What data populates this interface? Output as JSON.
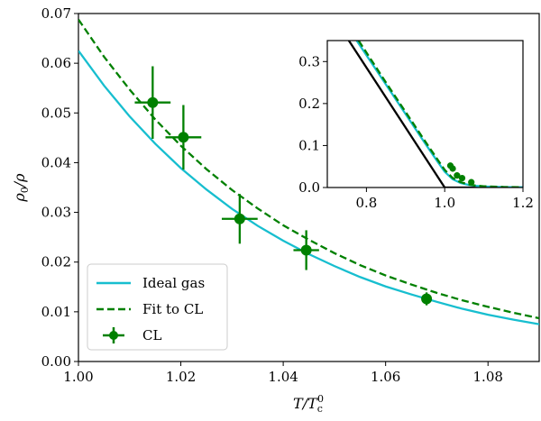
{
  "chart_data": [
    {
      "type": "line",
      "title": "",
      "xlabel": "T/T_c^0",
      "ylabel": "ρ_0/ρ",
      "xlim": [
        1.0,
        1.09
      ],
      "ylim": [
        0.0,
        0.07
      ],
      "xticks": [
        1.0,
        1.02,
        1.04,
        1.06,
        1.08
      ],
      "xtick_labels": [
        "1.00",
        "1.02",
        "1.04",
        "1.06",
        "1.08"
      ],
      "yticks": [
        0.0,
        0.01,
        0.02,
        0.03,
        0.04,
        0.05,
        0.06,
        0.07
      ],
      "ytick_labels": [
        "0.00",
        "0.01",
        "0.02",
        "0.03",
        "0.04",
        "0.05",
        "0.06",
        "0.07"
      ],
      "grid": false,
      "legend_position": "bottom-left",
      "series": [
        {
          "name": "Ideal gas",
          "style": "solid",
          "color": "#17becf",
          "x": [
            1.0,
            1.005,
            1.01,
            1.015,
            1.02,
            1.025,
            1.03,
            1.035,
            1.04,
            1.045,
            1.05,
            1.055,
            1.06,
            1.065,
            1.07,
            1.075,
            1.08,
            1.085,
            1.09
          ],
          "y": [
            0.0625,
            0.0555,
            0.0493,
            0.0438,
            0.0389,
            0.0346,
            0.0307,
            0.0273,
            0.0243,
            0.0216,
            0.0192,
            0.017,
            0.0151,
            0.0135,
            0.012,
            0.0106,
            0.0094,
            0.0084,
            0.0075
          ]
        },
        {
          "name": "Fit to CL",
          "style": "dashed",
          "color": "#008000",
          "x": [
            1.0,
            1.005,
            1.01,
            1.015,
            1.02,
            1.025,
            1.03,
            1.035,
            1.04,
            1.045,
            1.05,
            1.055,
            1.06,
            1.065,
            1.07,
            1.075,
            1.08,
            1.085,
            1.09
          ],
          "y": [
            0.0688,
            0.0613,
            0.0547,
            0.0487,
            0.0434,
            0.0387,
            0.0345,
            0.0308,
            0.0274,
            0.0245,
            0.0218,
            0.0194,
            0.0173,
            0.0155,
            0.0138,
            0.0123,
            0.011,
            0.0098,
            0.0087
          ]
        },
        {
          "name": "CL",
          "style": "errorbar",
          "color": "#008000",
          "x": [
            1.0145,
            1.0205,
            1.0315,
            1.0445,
            1.068
          ],
          "y": [
            0.0521,
            0.0451,
            0.0287,
            0.0224,
            0.0126
          ],
          "xerr": [
            0.0035,
            0.0035,
            0.0035,
            0.0025,
            0.0003
          ],
          "yerr": [
            0.0073,
            0.0065,
            0.005,
            0.004,
            0.0013
          ]
        }
      ]
    },
    {
      "type": "line",
      "title": "",
      "xlabel": "",
      "ylabel": "",
      "xlim": [
        0.7,
        1.2
      ],
      "ylim": [
        0.0,
        0.35
      ],
      "xticks": [
        0.8,
        1.0,
        1.2
      ],
      "xtick_labels": [
        "0.8",
        "1.0",
        "1.2"
      ],
      "yticks": [
        0.0,
        0.1,
        0.2,
        0.3
      ],
      "ytick_labels": [
        "0.0",
        "0.1",
        "0.2",
        "0.3"
      ],
      "grid": false,
      "series": [
        {
          "name": "",
          "style": "solid",
          "color": "#000000",
          "x": [
            0.755,
            1.0,
            1.2
          ],
          "y": [
            0.35,
            0.0,
            0.0
          ]
        },
        {
          "name": "",
          "style": "solid",
          "color": "#17becf",
          "x": [
            0.775,
            0.85,
            0.9,
            0.95,
            0.98,
            1.0,
            1.02,
            1.04,
            1.06,
            1.08,
            1.1,
            1.15,
            1.2
          ],
          "y": [
            0.35,
            0.245,
            0.175,
            0.105,
            0.064,
            0.0375,
            0.02,
            0.011,
            0.0065,
            0.004,
            0.0025,
            0.001,
            0.0005
          ]
        },
        {
          "name": "",
          "style": "dashed",
          "color": "#008000",
          "x": [
            0.78,
            0.85,
            0.9,
            0.95,
            0.98,
            1.0,
            1.02,
            1.04,
            1.06,
            1.08,
            1.1,
            1.15,
            1.2
          ],
          "y": [
            0.35,
            0.25,
            0.18,
            0.11,
            0.069,
            0.042,
            0.023,
            0.013,
            0.0075,
            0.0045,
            0.003,
            0.0012,
            0.0006
          ]
        },
        {
          "name": "",
          "style": "points",
          "color": "#008000",
          "x": [
            1.0145,
            1.0205,
            1.0315,
            1.0445,
            1.068
          ],
          "y": [
            0.0521,
            0.0451,
            0.0287,
            0.0224,
            0.0126
          ]
        }
      ]
    }
  ]
}
